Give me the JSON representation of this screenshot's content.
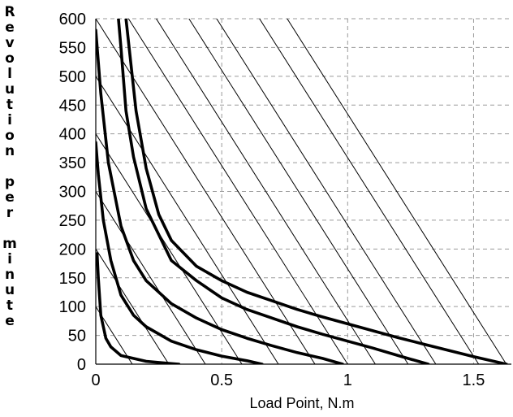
{
  "chart_data": {
    "type": "line",
    "title": "",
    "xlabel": "Load Point, N.m",
    "ylabel": "Revolution per minute",
    "xlim": [
      0,
      1.65
    ],
    "ylim": [
      0,
      600
    ],
    "x_ticks": [
      0,
      0.5,
      1,
      1.5
    ],
    "x_tick_labels": [
      "0",
      "0.5",
      "1",
      "1.5"
    ],
    "y_ticks": [
      0,
      50,
      100,
      150,
      200,
      250,
      300,
      350,
      400,
      450,
      500,
      550,
      600
    ],
    "y_tick_labels": [
      "0",
      "50",
      "100",
      "150",
      "200",
      "250",
      "300",
      "350",
      "400",
      "450",
      "500",
      "550",
      "600"
    ],
    "grid": "dashed",
    "legend": "none",
    "series": [
      {
        "style": "thick",
        "values": [
          [
            0.005,
            192
          ],
          [
            0.01,
            150
          ],
          [
            0.02,
            85
          ],
          [
            0.04,
            45
          ],
          [
            0.06,
            30
          ],
          [
            0.1,
            15
          ],
          [
            0.2,
            5
          ],
          [
            0.3,
            1
          ],
          [
            0.33,
            0
          ]
        ]
      },
      {
        "style": "thick",
        "values": [
          [
            0.0,
            385
          ],
          [
            0.01,
            330
          ],
          [
            0.03,
            250
          ],
          [
            0.06,
            180
          ],
          [
            0.1,
            120
          ],
          [
            0.15,
            85
          ],
          [
            0.2,
            65
          ],
          [
            0.3,
            40
          ],
          [
            0.4,
            25
          ],
          [
            0.5,
            14
          ],
          [
            0.6,
            6
          ],
          [
            0.66,
            0
          ]
        ]
      },
      {
        "style": "thick",
        "values": [
          [
            0.0,
            580
          ],
          [
            0.02,
            470
          ],
          [
            0.05,
            350
          ],
          [
            0.1,
            240
          ],
          [
            0.15,
            180
          ],
          [
            0.2,
            145
          ],
          [
            0.3,
            105
          ],
          [
            0.4,
            80
          ],
          [
            0.5,
            60
          ],
          [
            0.6,
            45
          ],
          [
            0.7,
            32
          ],
          [
            0.8,
            20
          ],
          [
            0.9,
            10
          ],
          [
            0.98,
            0
          ]
        ]
      },
      {
        "style": "thick",
        "values": [
          [
            0.09,
            600
          ],
          [
            0.1,
            550
          ],
          [
            0.12,
            440
          ],
          [
            0.15,
            360
          ],
          [
            0.2,
            270
          ],
          [
            0.3,
            180
          ],
          [
            0.4,
            145
          ],
          [
            0.5,
            115
          ],
          [
            0.6,
            95
          ],
          [
            0.7,
            80
          ],
          [
            0.8,
            65
          ],
          [
            0.9,
            52
          ],
          [
            1.0,
            40
          ],
          [
            1.1,
            28
          ],
          [
            1.2,
            15
          ],
          [
            1.32,
            0
          ]
        ]
      },
      {
        "style": "thick",
        "values": [
          [
            0.12,
            600
          ],
          [
            0.14,
            520
          ],
          [
            0.16,
            440
          ],
          [
            0.2,
            340
          ],
          [
            0.25,
            260
          ],
          [
            0.3,
            215
          ],
          [
            0.4,
            170
          ],
          [
            0.5,
            145
          ],
          [
            0.6,
            125
          ],
          [
            0.7,
            110
          ],
          [
            0.8,
            95
          ],
          [
            0.9,
            82
          ],
          [
            1.0,
            70
          ],
          [
            1.1,
            58
          ],
          [
            1.2,
            46
          ],
          [
            1.3,
            35
          ],
          [
            1.4,
            24
          ],
          [
            1.5,
            13
          ],
          [
            1.6,
            3
          ],
          [
            1.63,
            0
          ]
        ]
      },
      {
        "style": "thin",
        "values": [
          [
            0.0,
            100
          ],
          [
            0.145,
            0
          ]
        ]
      },
      {
        "style": "thin",
        "values": [
          [
            0.0,
            200
          ],
          [
            0.29,
            0
          ]
        ]
      },
      {
        "style": "thin",
        "values": [
          [
            0.0,
            300
          ],
          [
            0.435,
            0
          ]
        ]
      },
      {
        "style": "thin",
        "values": [
          [
            0.0,
            400
          ],
          [
            0.58,
            0
          ]
        ]
      },
      {
        "style": "thin",
        "values": [
          [
            0.0,
            500
          ],
          [
            0.725,
            0
          ]
        ]
      },
      {
        "style": "thin",
        "values": [
          [
            0.0,
            600
          ],
          [
            0.87,
            0
          ]
        ]
      },
      {
        "style": "thin",
        "values": [
          [
            0.13,
            600
          ],
          [
            1.0,
            0
          ]
        ]
      },
      {
        "style": "thin",
        "values": [
          [
            0.24,
            600
          ],
          [
            1.11,
            0
          ]
        ]
      },
      {
        "style": "thin",
        "values": [
          [
            0.37,
            600
          ],
          [
            1.24,
            0
          ]
        ]
      },
      {
        "style": "thin",
        "values": [
          [
            0.48,
            600
          ],
          [
            1.35,
            0
          ]
        ]
      },
      {
        "style": "thin",
        "values": [
          [
            0.65,
            600
          ],
          [
            1.52,
            0
          ]
        ]
      },
      {
        "style": "thin",
        "values": [
          [
            0.76,
            600
          ],
          [
            1.63,
            0
          ]
        ]
      }
    ]
  },
  "ylabel_letters": [
    "R",
    "e",
    "v",
    "o",
    "l",
    "u",
    "t",
    "i",
    "o",
    "n",
    "",
    "p",
    "e",
    "r",
    "",
    "m",
    "i",
    "n",
    "u",
    "t",
    "e"
  ]
}
